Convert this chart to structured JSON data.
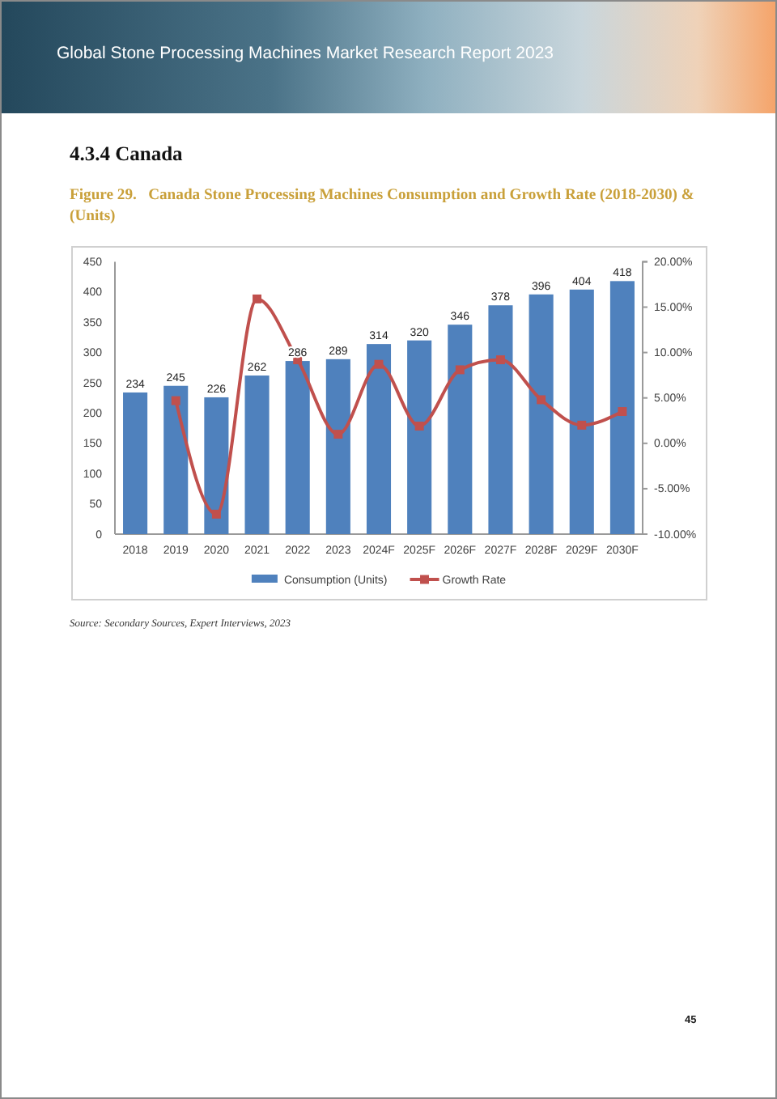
{
  "chart_data": {
    "type": "bar",
    "title": "Figure 29.   Canada Stone Processing Machines Consumption and Growth Rate (2018-2030) & (Units)",
    "annotations": [
      "Global Stone Processing Machines Market Research Report 2023",
      "4.3.4  Canada",
      "Source: Secondary Sources, Expert Interviews, 2023",
      "45"
    ],
    "categories": [
      "2018",
      "2019",
      "2020",
      "2021",
      "2022",
      "2023",
      "2024F",
      "2025F",
      "2026F",
      "2027F",
      "2028F",
      "2029F",
      "2030F"
    ],
    "series": [
      {
        "name": "Consumption (Units)",
        "color": "#4f81bd",
        "values": [
          234,
          245,
          226,
          262,
          286,
          289,
          314,
          320,
          346,
          378,
          396,
          404,
          418
        ],
        "value_labels": [
          "234",
          "245",
          "226",
          "262",
          "286",
          "289",
          "314",
          "320",
          "346",
          "378",
          "396",
          "404",
          "418"
        ]
      },
      {
        "name": "Growth Rate",
        "type": "line",
        "axis": "y2",
        "color": "#c0504d",
        "values": [
          null,
          4.7,
          -7.8,
          15.9,
          9.2,
          1.0,
          8.7,
          1.9,
          8.1,
          9.2,
          4.8,
          2.0,
          3.5
        ]
      }
    ],
    "ylim": [
      0,
      450
    ],
    "yticks": [
      0,
      50,
      100,
      150,
      200,
      250,
      300,
      350,
      400,
      450
    ],
    "y2lim": [
      -10,
      20
    ],
    "y2ticks": [
      {
        "value": -10,
        "label": "-10.00%"
      },
      {
        "value": -5,
        "label": "-5.00%"
      },
      {
        "value": 0,
        "label": "0.00%"
      },
      {
        "value": 5,
        "label": "5.00%"
      },
      {
        "value": 10,
        "label": "10.00%"
      },
      {
        "value": 15,
        "label": "15.00%"
      },
      {
        "value": 20,
        "label": "20.00%"
      }
    ],
    "legend": "bottom",
    "marker": "square"
  }
}
